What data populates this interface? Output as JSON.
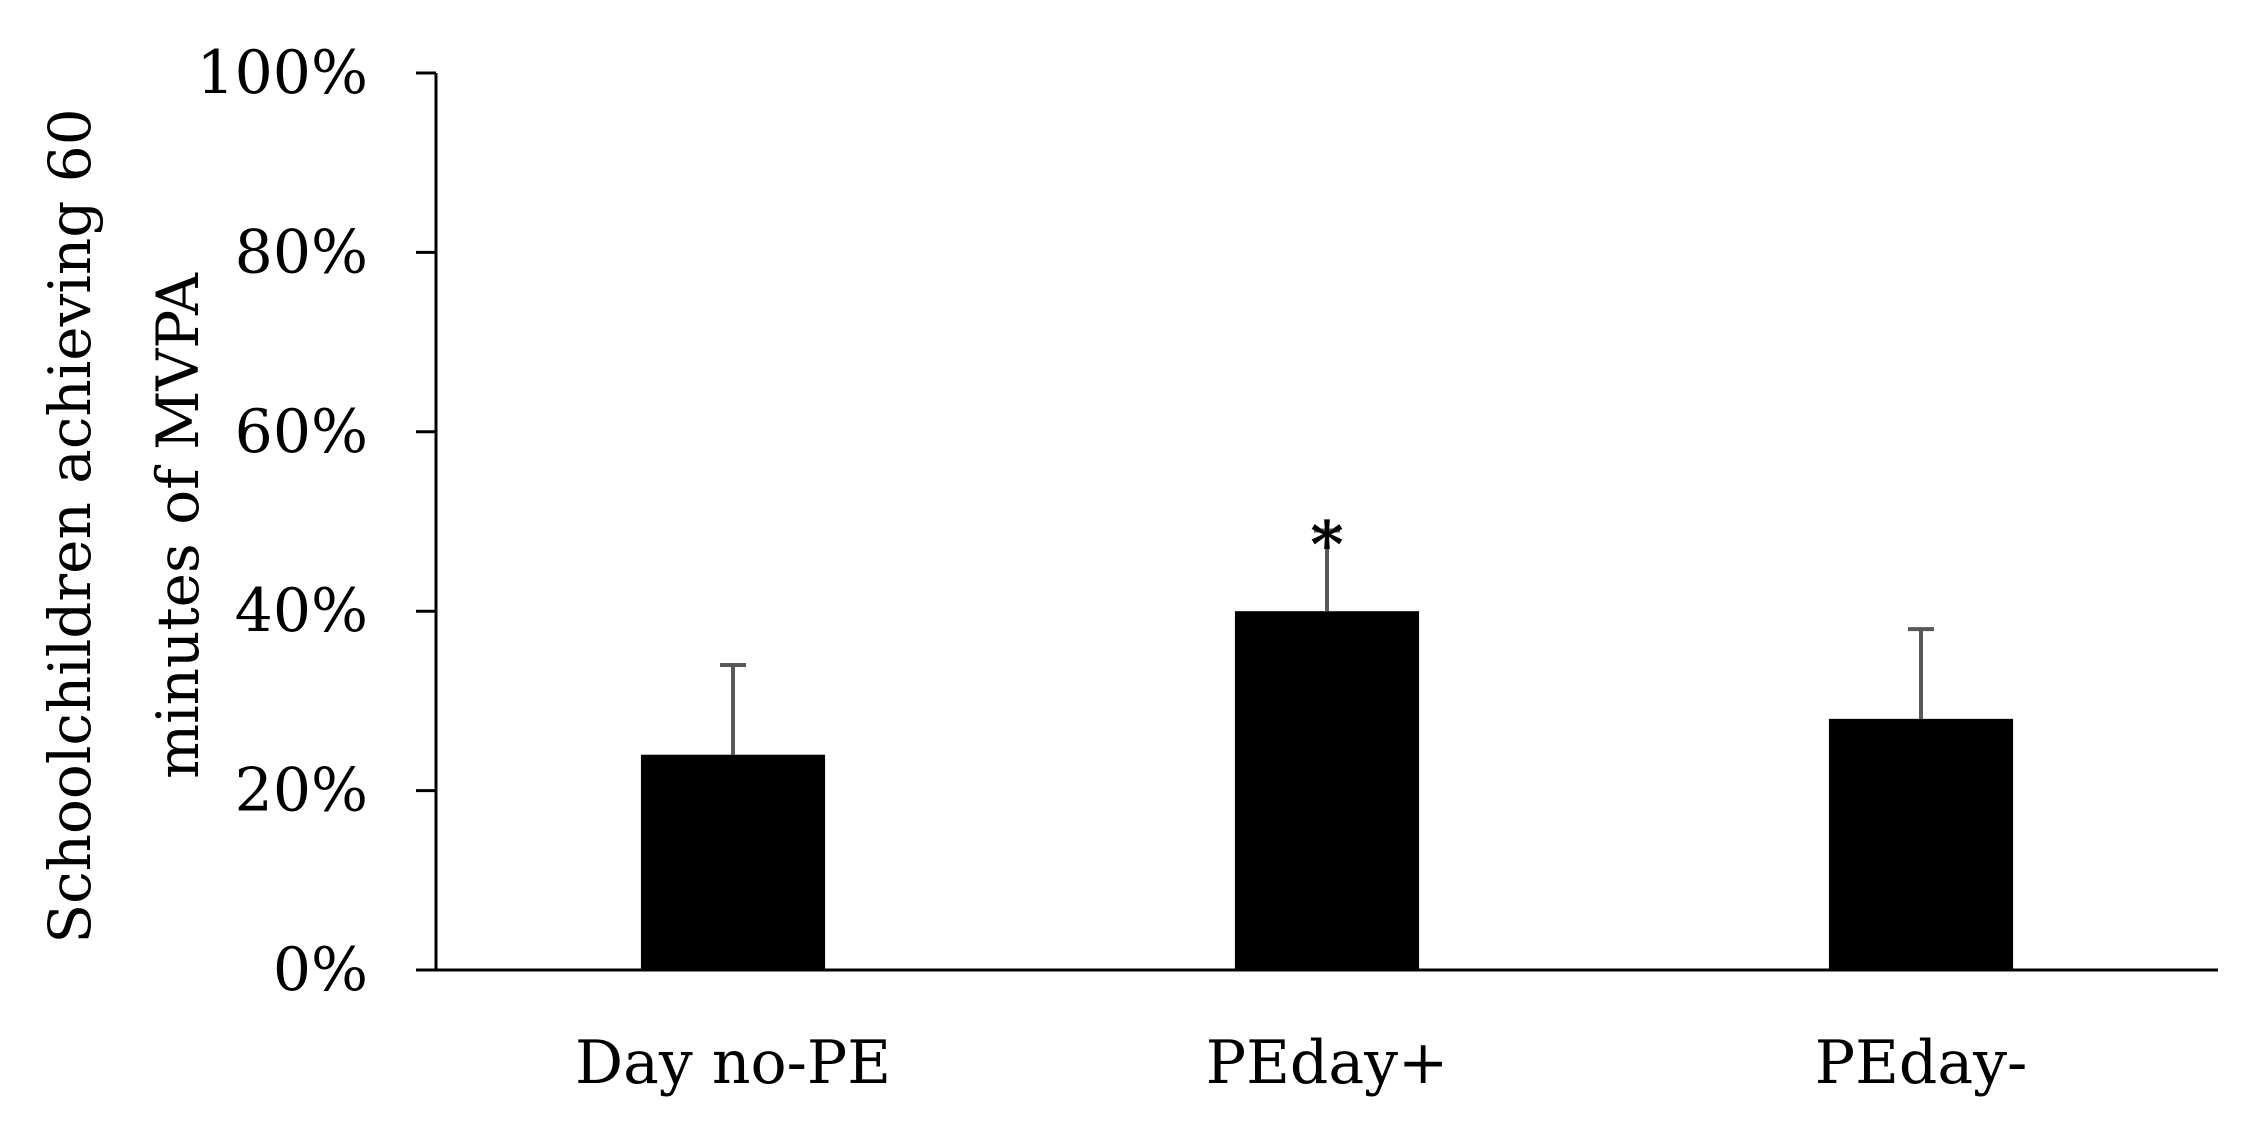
{
  "chart_data": {
    "type": "bar",
    "categories": [
      "Day no-PE",
      "PEday+",
      "PEday-"
    ],
    "series": [
      {
        "values": [
          24,
          40,
          28
        ],
        "error_upper": [
          10,
          9,
          10
        ]
      }
    ],
    "ylabel_lines": [
      "Schoolchildren achieving 60",
      "minutes of MVPA"
    ],
    "xlabel": "",
    "ylim": [
      0,
      100
    ],
    "yticks": [
      0,
      20,
      40,
      60,
      80,
      100
    ],
    "ytick_labels": [
      "0%",
      "20%",
      "40%",
      "60%",
      "80%",
      "100%"
    ],
    "grid": false,
    "legend": "none",
    "annotations": [
      {
        "category": "PEday+",
        "text": "*"
      }
    ],
    "colors": {
      "bar": "#000000",
      "error_bar": "#595959",
      "axis": "#000000"
    }
  }
}
